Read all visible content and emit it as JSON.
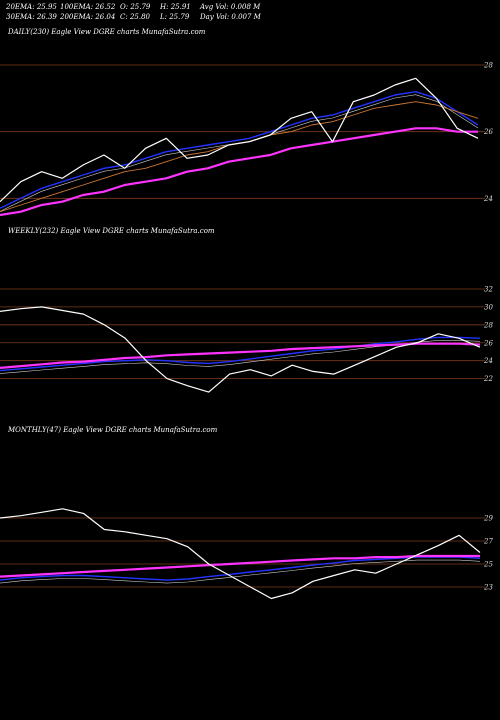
{
  "header": {
    "ema20": "20EMA: 25.95",
    "ema100": "100EMA: 26.52",
    "open": "O: 25.79",
    "high": "H: 25.91",
    "avgvol": "Avg Vol: 0.008  M",
    "ema30": "30EMA: 26.39",
    "ema200": "200EMA: 26.04",
    "close": "C: 25.80",
    "low": "L: 25.79",
    "dayvol": "Day Vol: 0.007 M"
  },
  "colors": {
    "background": "#000000",
    "price": "#ffffff",
    "ema_fast": "#2233ff",
    "ema_long": "#ff33ff",
    "ema_mid": "#cc7733",
    "gridline": "#7a3a1a"
  },
  "chart_data": [
    {
      "type": "line",
      "title": "DAILY(230) Eagle  View  DGRE charts MunafaSutra.com",
      "yticks": [
        28,
        26,
        24
      ],
      "ylim": [
        23.5,
        28.6
      ],
      "x": [
        0,
        10,
        20,
        30,
        40,
        50,
        60,
        70,
        80,
        90,
        100,
        110,
        120,
        130,
        140,
        150,
        160,
        170,
        180,
        190,
        200,
        210,
        220,
        230
      ],
      "series": [
        {
          "values": [
            23.9,
            24.5,
            24.8,
            24.6,
            25.0,
            25.3,
            24.9,
            25.5,
            25.8,
            25.2,
            25.3,
            25.6,
            25.7,
            25.9,
            26.4,
            26.6,
            25.7,
            26.9,
            27.1,
            27.4,
            27.6,
            27.0,
            26.1,
            25.8
          ]
        },
        {
          "values": [
            23.7,
            24.0,
            24.3,
            24.5,
            24.7,
            24.9,
            25.0,
            25.2,
            25.4,
            25.5,
            25.6,
            25.7,
            25.8,
            26.0,
            26.2,
            26.4,
            26.5,
            26.7,
            26.9,
            27.1,
            27.2,
            27.0,
            26.6,
            26.2
          ]
        },
        {
          "values": [
            23.6,
            23.8,
            24.0,
            24.2,
            24.4,
            24.6,
            24.8,
            24.9,
            25.1,
            25.3,
            25.4,
            25.6,
            25.7,
            25.9,
            26.0,
            26.2,
            26.3,
            26.5,
            26.7,
            26.8,
            26.9,
            26.8,
            26.6,
            26.4
          ]
        },
        {
          "values": [
            23.5,
            23.6,
            23.8,
            23.9,
            24.1,
            24.2,
            24.4,
            24.5,
            24.6,
            24.8,
            24.9,
            25.1,
            25.2,
            25.3,
            25.5,
            25.6,
            25.7,
            25.8,
            25.9,
            26.0,
            26.1,
            26.1,
            26.0,
            26.0
          ]
        }
      ]
    },
    {
      "type": "line",
      "title": "WEEKLY(232) Eagle  View  DGRE charts MunafaSutra.com",
      "yticks": [
        32,
        30,
        28,
        26,
        24,
        22
      ],
      "ylim": [
        18.5,
        33.0
      ],
      "x": [
        0,
        10,
        20,
        30,
        40,
        50,
        60,
        70,
        80,
        90,
        100,
        110,
        120,
        130,
        140,
        150,
        160,
        170,
        180,
        190,
        200,
        210,
        220,
        230
      ],
      "series": [
        {
          "values": [
            29.5,
            29.8,
            30.0,
            29.6,
            29.2,
            28.0,
            26.5,
            24.0,
            22.0,
            21.2,
            20.5,
            22.5,
            23.0,
            22.3,
            23.5,
            22.8,
            22.5,
            23.5,
            24.5,
            25.5,
            26.0,
            27.0,
            26.5,
            25.5
          ]
        },
        {
          "values": [
            22.9,
            23.1,
            23.3,
            23.5,
            23.7,
            23.9,
            24.0,
            24.1,
            24.0,
            23.8,
            23.7,
            23.9,
            24.2,
            24.5,
            24.8,
            25.1,
            25.3,
            25.6,
            25.9,
            26.1,
            26.4,
            26.6,
            26.6,
            26.5
          ]
        },
        {
          "values": [
            23.2,
            23.4,
            23.6,
            23.8,
            23.9,
            24.1,
            24.3,
            24.4,
            24.6,
            24.7,
            24.8,
            24.9,
            25.0,
            25.1,
            25.3,
            25.4,
            25.5,
            25.6,
            25.7,
            25.8,
            25.9,
            25.9,
            25.9,
            25.8
          ]
        }
      ]
    },
    {
      "type": "line",
      "title": "MONTHLY(47) Eagle  View  DGRE charts MunafaSutra.com",
      "yticks": [
        29,
        27,
        25,
        23
      ],
      "ylim": [
        21.0,
        31.0
      ],
      "x": [
        0,
        2,
        4,
        6,
        8,
        10,
        12,
        14,
        16,
        18,
        20,
        22,
        24,
        26,
        28,
        30,
        32,
        34,
        36,
        38,
        40,
        42,
        44,
        46
      ],
      "series": [
        {
          "values": [
            29.0,
            29.2,
            29.5,
            29.8,
            29.4,
            28.0,
            27.8,
            27.5,
            27.2,
            26.5,
            25.0,
            24.0,
            23.0,
            22.0,
            22.5,
            23.5,
            24.0,
            24.5,
            24.2,
            25.0,
            25.8,
            26.6,
            27.5,
            26.0
          ]
        },
        {
          "values": [
            23.6,
            23.8,
            23.9,
            24.0,
            24.0,
            23.9,
            23.8,
            23.7,
            23.6,
            23.7,
            23.9,
            24.1,
            24.3,
            24.5,
            24.7,
            24.9,
            25.1,
            25.3,
            25.4,
            25.5,
            25.6,
            25.6,
            25.6,
            25.5
          ]
        },
        {
          "values": [
            23.9,
            24.0,
            24.1,
            24.2,
            24.3,
            24.4,
            24.5,
            24.6,
            24.7,
            24.8,
            24.9,
            25.0,
            25.1,
            25.2,
            25.3,
            25.4,
            25.5,
            25.5,
            25.6,
            25.6,
            25.7,
            25.7,
            25.7,
            25.7
          ]
        }
      ]
    }
  ]
}
